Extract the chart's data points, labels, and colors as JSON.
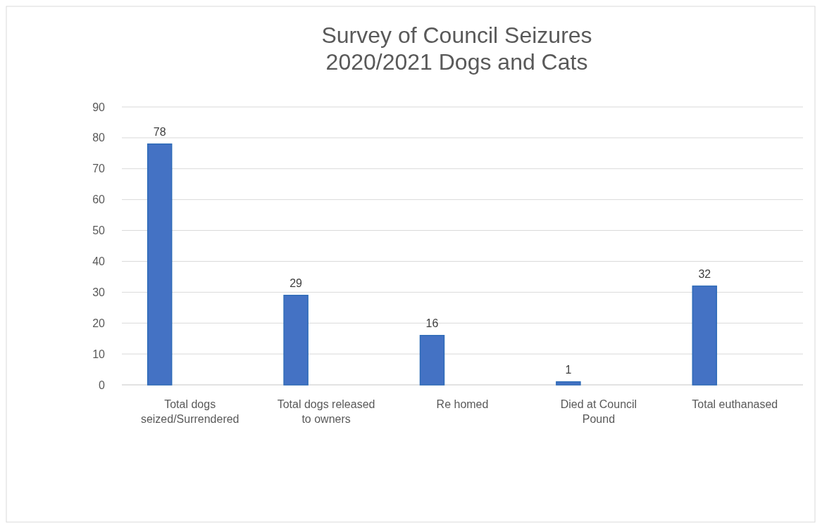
{
  "chart_data": {
    "type": "bar",
    "title": "Survey of Council Seizures\n2020/2021 Dogs and Cats",
    "categories": [
      "Total dogs seized/Surrendered",
      "Total dogs released to owners",
      "Re homed",
      "Died at Council Pound",
      "Total euthanased"
    ],
    "values": [
      78,
      29,
      16,
      1,
      32
    ],
    "color": "#4472c4",
    "ylim": [
      0,
      90
    ],
    "yticks": [
      0,
      10,
      20,
      30,
      40,
      50,
      60,
      70,
      80,
      90
    ],
    "grid": "y",
    "data_labels": true
  }
}
